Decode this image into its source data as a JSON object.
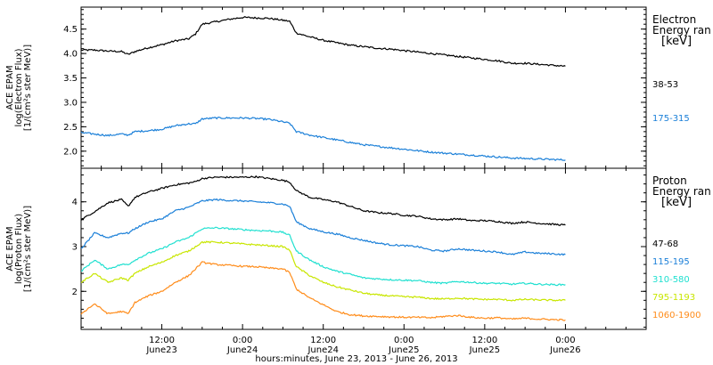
{
  "colors": {
    "frame": "#000000",
    "series": [
      "#000000",
      "#1a7fd8",
      "#20e0d0",
      "#c8e600",
      "#ff8c1a"
    ]
  },
  "xaxis": {
    "label": "hours:minutes, June 23, 2013 - June 26, 2013",
    "range_hours": [
      0,
      84
    ],
    "ticks": [
      {
        "t": 12,
        "time": "12:00",
        "date": "June23"
      },
      {
        "t": 24,
        "time": "0:00",
        "date": "June24"
      },
      {
        "t": 36,
        "time": "12:00",
        "date": "June24"
      },
      {
        "t": 48,
        "time": "0:00",
        "date": "June25"
      },
      {
        "t": 60,
        "time": "12:00",
        "date": "June25"
      },
      {
        "t": 72,
        "time": "0:00",
        "date": "June26"
      }
    ]
  },
  "chart_data": [
    {
      "type": "line",
      "ylabel_lines": [
        "ACE EPAM",
        "log(Electron Flux)",
        "[1/(cm²s ster MeV)]"
      ],
      "legend_title_lines": [
        "Electron",
        "Energy ran",
        "[keV]"
      ],
      "ylim": [
        1.65,
        4.95
      ],
      "yticks": [
        2.0,
        2.5,
        3.0,
        3.5,
        4.0,
        4.5
      ],
      "ytick_labels": [
        "2.0",
        "2.5",
        "3.0",
        "3.5",
        "4.0",
        "4.5"
      ],
      "x_hours": [
        0,
        2,
        4,
        6,
        7,
        8,
        10,
        12,
        14,
        16,
        17,
        18,
        20,
        22,
        24,
        26,
        28,
        30,
        31,
        32,
        34,
        36,
        38,
        40,
        42,
        44,
        46,
        48,
        50,
        52,
        54,
        56,
        58,
        60,
        62,
        64,
        66,
        68,
        70,
        72
      ],
      "series": [
        {
          "name": "38-53",
          "values": [
            4.07,
            4.07,
            4.05,
            4.04,
            3.98,
            4.04,
            4.12,
            4.18,
            4.26,
            4.3,
            4.4,
            4.6,
            4.65,
            4.7,
            4.74,
            4.73,
            4.72,
            4.68,
            4.66,
            4.42,
            4.34,
            4.27,
            4.22,
            4.17,
            4.14,
            4.11,
            4.09,
            4.06,
            4.03,
            4.0,
            3.97,
            3.94,
            3.91,
            3.88,
            3.85,
            3.8,
            3.8,
            3.78,
            3.76,
            3.74
          ]
        },
        {
          "name": "175-315",
          "values": [
            2.38,
            2.35,
            2.32,
            2.35,
            2.33,
            2.4,
            2.42,
            2.45,
            2.52,
            2.56,
            2.56,
            2.66,
            2.68,
            2.68,
            2.68,
            2.67,
            2.65,
            2.6,
            2.57,
            2.4,
            2.33,
            2.28,
            2.23,
            2.18,
            2.13,
            2.1,
            2.07,
            2.04,
            2.01,
            1.98,
            1.96,
            1.94,
            1.92,
            1.9,
            1.88,
            1.86,
            1.85,
            1.84,
            1.83,
            1.82
          ]
        }
      ]
    },
    {
      "type": "line",
      "ylabel_lines": [
        "ACE EPAM",
        "log(Proton Flux)",
        "[1/(cm²s ster MeV)]"
      ],
      "legend_title_lines": [
        "Proton",
        "Energy ran",
        "[keV]"
      ],
      "ylim": [
        1.15,
        4.75
      ],
      "yticks": [
        2,
        3,
        4
      ],
      "ytick_labels": [
        "2",
        "3",
        "4"
      ],
      "x_hours": [
        0,
        2,
        4,
        6,
        7,
        8,
        10,
        12,
        14,
        16,
        17,
        18,
        20,
        22,
        24,
        26,
        28,
        30,
        31,
        32,
        34,
        36,
        38,
        40,
        42,
        44,
        46,
        48,
        50,
        52,
        54,
        56,
        58,
        60,
        62,
        64,
        66,
        68,
        70,
        72
      ],
      "series": [
        {
          "name": "47-68",
          "values": [
            3.6,
            3.78,
            3.98,
            4.05,
            3.9,
            4.1,
            4.22,
            4.3,
            4.38,
            4.42,
            4.45,
            4.52,
            4.55,
            4.55,
            4.55,
            4.56,
            4.52,
            4.48,
            4.44,
            4.25,
            4.1,
            4.05,
            4.0,
            3.9,
            3.8,
            3.76,
            3.74,
            3.7,
            3.68,
            3.62,
            3.6,
            3.62,
            3.58,
            3.58,
            3.56,
            3.52,
            3.55,
            3.52,
            3.5,
            3.48
          ]
        },
        {
          "name": "115-195",
          "values": [
            2.95,
            3.3,
            3.2,
            3.3,
            3.3,
            3.4,
            3.55,
            3.62,
            3.8,
            3.88,
            3.95,
            4.02,
            4.05,
            4.03,
            4.02,
            4.0,
            3.98,
            3.95,
            3.9,
            3.55,
            3.4,
            3.33,
            3.28,
            3.2,
            3.14,
            3.08,
            3.04,
            3.02,
            3.0,
            2.92,
            2.9,
            2.95,
            2.92,
            2.9,
            2.88,
            2.82,
            2.88,
            2.85,
            2.84,
            2.82
          ]
        },
        {
          "name": "310-580",
          "values": [
            2.45,
            2.7,
            2.5,
            2.6,
            2.6,
            2.7,
            2.85,
            2.95,
            3.1,
            3.2,
            3.3,
            3.4,
            3.42,
            3.4,
            3.38,
            3.36,
            3.35,
            3.32,
            3.25,
            2.9,
            2.7,
            2.55,
            2.45,
            2.38,
            2.3,
            2.28,
            2.26,
            2.25,
            2.24,
            2.2,
            2.18,
            2.22,
            2.2,
            2.18,
            2.18,
            2.16,
            2.18,
            2.16,
            2.15,
            2.15
          ]
        },
        {
          "name": "795-1193",
          "values": [
            2.2,
            2.4,
            2.2,
            2.3,
            2.25,
            2.4,
            2.55,
            2.65,
            2.8,
            2.9,
            3.0,
            3.1,
            3.1,
            3.08,
            3.06,
            3.04,
            3.02,
            3.0,
            2.92,
            2.55,
            2.35,
            2.2,
            2.1,
            2.03,
            1.96,
            1.92,
            1.9,
            1.88,
            1.87,
            1.84,
            1.83,
            1.85,
            1.83,
            1.82,
            1.82,
            1.8,
            1.82,
            1.81,
            1.8,
            1.8
          ]
        },
        {
          "name": "1060-1900",
          "values": [
            1.5,
            1.72,
            1.5,
            1.55,
            1.5,
            1.75,
            1.9,
            2.0,
            2.2,
            2.35,
            2.5,
            2.65,
            2.6,
            2.58,
            2.56,
            2.55,
            2.52,
            2.5,
            2.42,
            2.05,
            1.85,
            1.7,
            1.55,
            1.48,
            1.45,
            1.44,
            1.43,
            1.42,
            1.42,
            1.41,
            1.44,
            1.46,
            1.42,
            1.4,
            1.41,
            1.38,
            1.4,
            1.38,
            1.37,
            1.36
          ]
        }
      ]
    }
  ]
}
